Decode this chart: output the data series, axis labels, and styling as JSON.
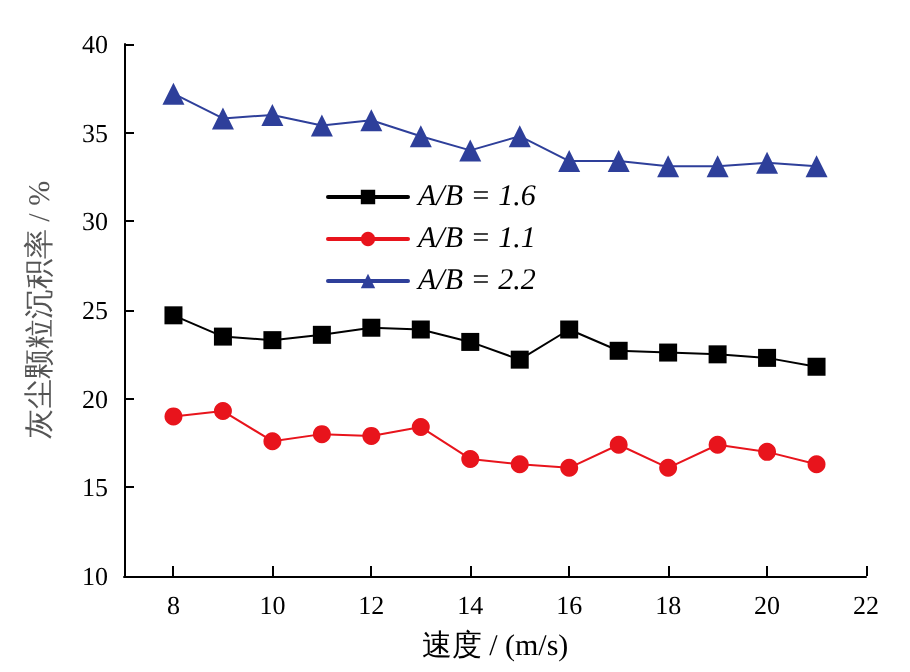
{
  "chart_data": {
    "type": "line",
    "xlabel": "速度 / (m/s)",
    "ylabel": "灰尘颗粒沉积率 / %",
    "x": [
      8,
      9,
      10,
      11,
      12,
      13,
      14,
      15,
      16,
      17,
      18,
      19,
      20,
      21
    ],
    "series": [
      {
        "name": "A/B = 1.6",
        "color": "#000000",
        "marker": "square",
        "values": [
          24.7,
          23.5,
          23.3,
          23.6,
          24.0,
          23.9,
          23.2,
          22.2,
          23.9,
          22.7,
          22.6,
          22.5,
          22.3,
          21.8
        ]
      },
      {
        "name": "A/B = 1.1",
        "color": "#e8141c",
        "marker": "circle",
        "values": [
          19.0,
          19.3,
          17.6,
          18.0,
          17.9,
          18.4,
          16.6,
          16.3,
          16.1,
          17.4,
          16.1,
          17.4,
          17.0,
          16.3
        ]
      },
      {
        "name": "A/B = 2.2",
        "color": "#2e3f9a",
        "marker": "triangle",
        "values": [
          37.2,
          35.8,
          36.0,
          35.4,
          35.7,
          34.8,
          34.0,
          34.8,
          33.4,
          33.4,
          33.1,
          33.1,
          33.3,
          33.1
        ]
      }
    ],
    "xlim": [
      7,
      22
    ],
    "xticks": [
      8,
      10,
      12,
      14,
      16,
      18,
      20,
      22
    ],
    "ylim": [
      10,
      40
    ],
    "yticks": [
      10,
      15,
      20,
      25,
      30,
      35,
      40
    ],
    "grid": false,
    "legend": "top left",
    "line_style": "solid"
  }
}
